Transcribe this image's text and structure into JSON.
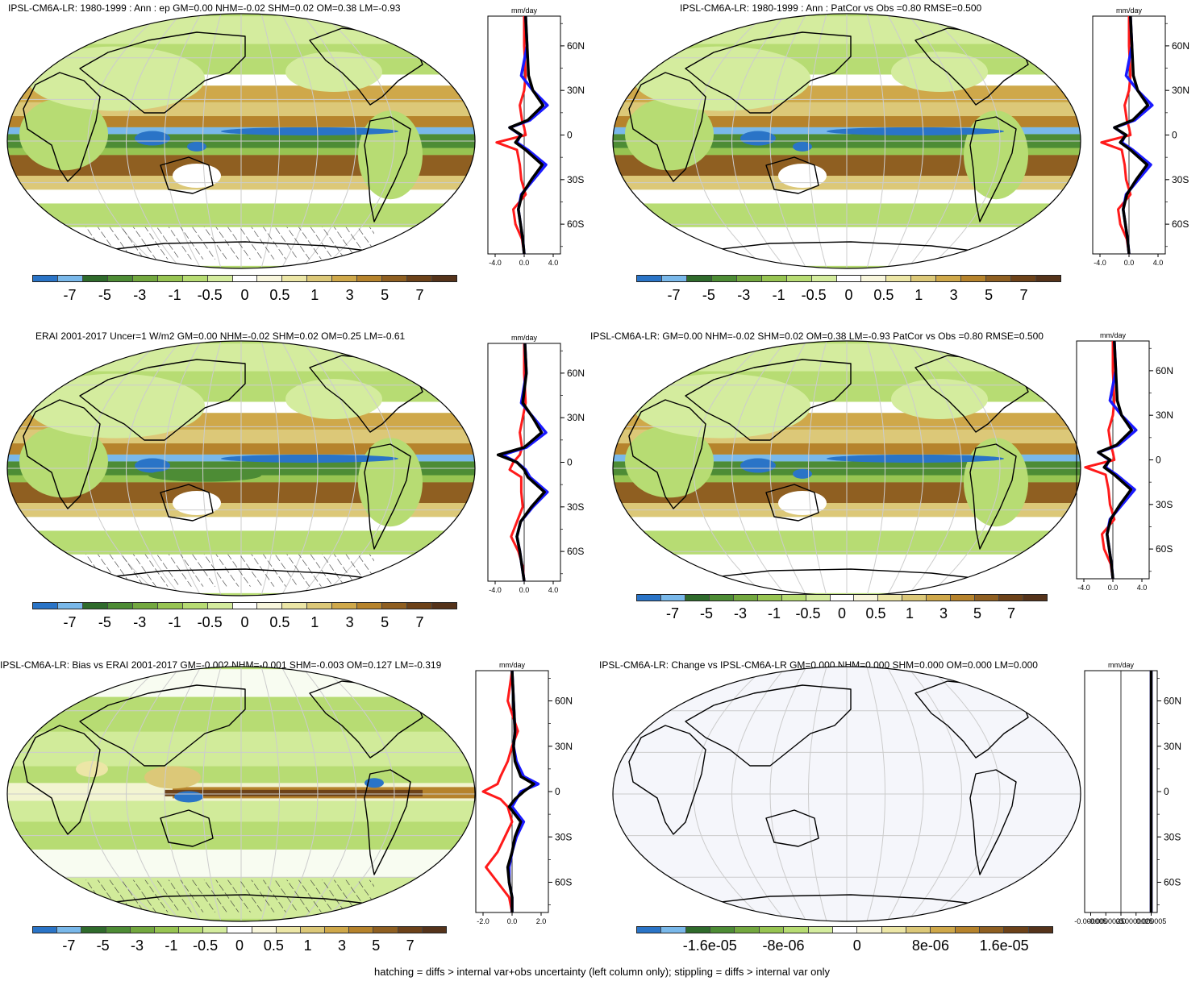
{
  "colors": {
    "palette": [
      "#2a74c7",
      "#79b8ea",
      "#2f6b2c",
      "#4d8c35",
      "#73a83f",
      "#97c452",
      "#b7dc73",
      "#d4ec9e",
      "#ffffff",
      "#f8f6dc",
      "#ece6a6",
      "#dcc878",
      "#cfa84a",
      "#b6832c",
      "#8f5f21",
      "#6d4219",
      "#55331a"
    ],
    "model_line": "#000000",
    "obs_line": "#1a1aff",
    "diff_line": "#ff1a1a"
  },
  "colorbar_labels": [
    "-7",
    "-5",
    "-3",
    "-1",
    "-0.5",
    "0",
    "0.5",
    "1",
    "3",
    "5",
    "7"
  ],
  "colorbar_labels_change": [
    "-1.6e-05",
    "-8e-06",
    "0",
    "8e-06",
    "1.6e-05"
  ],
  "units": "mm/day",
  "lat_ticks": [
    "60N",
    "30N",
    "0",
    "30S",
    "60S"
  ],
  "panels": [
    {
      "id": "model",
      "title": "IPSL-CM6A-LR: 1980-1999 : Ann : ep GM=0.00 NHM=-0.02 SHM=0.02 OM=0.38 LM=-0.93",
      "x_ticks": [
        "-4.0",
        "0.0",
        "4.0"
      ]
    },
    {
      "id": "model-patcor",
      "title": "IPSL-CM6A-LR: 1980-1999 : Ann : PatCor vs Obs =0.80 RMSE=0.500",
      "x_ticks": [
        "-4.0",
        "0.0",
        "4.0"
      ]
    },
    {
      "id": "obs",
      "title": "ERAI 2001-2017 Uncer=1 W/m2 GM=0.00 NHM=-0.02 SHM=0.02 OM=0.25 LM=-0.61",
      "x_ticks": [
        "-4.0",
        "0.0",
        "4.0"
      ]
    },
    {
      "id": "model-summary",
      "title": "IPSL-CM6A-LR: GM=0.00 NHM=-0.02 SHM=0.02 OM=0.38 LM=-0.93 PatCor vs Obs =0.80 RMSE=0.500",
      "x_ticks": [
        "-4.0",
        "0.0",
        "4.0"
      ]
    },
    {
      "id": "bias",
      "title": "IPSL-CM6A-LR: Bias vs ERAI 2001-2017 GM=-0.002 NHM=-0.001 SHM=-0.003 OM=0.127 LM=-0.319",
      "x_ticks": [
        "-2.0",
        "0.0",
        "2.0"
      ]
    },
    {
      "id": "change",
      "title": "IPSL-CM6A-LR: Change vs IPSL-CM6A-LR GM=0.000 NHM=0.000 SHM=0.000 OM=0.000 LM=0.000",
      "x_ticks": [
        "-0.000005",
        "-0.0000025",
        "0.0",
        "0.0000025",
        "0.000005"
      ]
    }
  ],
  "footer": "hatching = diffs > internal var+obs uncertainty (left column only); stippling = diffs > internal var only",
  "chart_data": [
    {
      "type": "heatmap",
      "title": "IPSL-CM6A-LR: 1980-1999 : Ann : ep GM=0.00 NHM=-0.02 SHM=0.02 OM=0.38 LM=-0.93",
      "zonal_mean": {
        "lat": [
          80,
          60,
          40,
          30,
          20,
          10,
          5,
          0,
          -5,
          -10,
          -20,
          -30,
          -40,
          -50,
          -60,
          -70,
          -80
        ],
        "model": [
          0.2,
          0.4,
          0.6,
          1.2,
          2.6,
          0.5,
          -2.0,
          -0.4,
          -1.2,
          0.2,
          2.5,
          1.0,
          -0.3,
          -0.8,
          -0.5,
          -0.2,
          0.0
        ],
        "obs": [
          0.2,
          0.4,
          -0.4,
          1.2,
          3.2,
          0.8,
          -2.0,
          -0.5,
          -1.0,
          0.5,
          3.0,
          1.3,
          -0.4,
          -0.8,
          -0.5,
          -0.2,
          0.0
        ],
        "diff": [
          0.0,
          0.0,
          0.2,
          0.0,
          -0.6,
          -0.3,
          0.0,
          0.2,
          -3.8,
          -1.0,
          -0.6,
          -0.4,
          0.2,
          -1.5,
          -1.2,
          -0.3,
          0.0
        ]
      },
      "xlim": [
        -5,
        5
      ],
      "ylim": [
        -80,
        80
      ]
    },
    {
      "type": "heatmap",
      "title": "IPSL-CM6A-LR: 1980-1999 : Ann : PatCor vs Obs =0.80 RMSE=0.500",
      "zonal_mean": {
        "lat": [
          80,
          60,
          40,
          30,
          20,
          10,
          5,
          0,
          -5,
          -10,
          -20,
          -30,
          -40,
          -50,
          -60,
          -70,
          -80
        ],
        "model": [
          0.2,
          0.4,
          0.6,
          1.2,
          2.6,
          0.5,
          -2.0,
          -0.4,
          -1.2,
          0.2,
          2.5,
          1.0,
          -0.3,
          -0.8,
          -0.5,
          -0.2,
          0.0
        ],
        "obs": [
          0.2,
          0.4,
          -0.4,
          1.2,
          3.2,
          0.8,
          -2.0,
          -0.5,
          -1.0,
          0.5,
          3.0,
          1.3,
          -0.4,
          -0.8,
          -0.5,
          -0.2,
          0.0
        ],
        "diff": [
          0.0,
          0.0,
          0.2,
          0.0,
          -0.6,
          -0.3,
          0.0,
          0.2,
          -3.8,
          -1.0,
          -0.6,
          -0.4,
          0.2,
          -1.5,
          -1.2,
          -0.3,
          0.0
        ]
      },
      "xlim": [
        -5,
        5
      ],
      "ylim": [
        -80,
        80
      ]
    },
    {
      "type": "heatmap",
      "title": "ERAI 2001-2017 Uncer=1 W/m2 GM=0.00 NHM=-0.02 SHM=0.02 OM=0.25 LM=-0.61",
      "zonal_mean": {
        "lat": [
          80,
          60,
          40,
          30,
          20,
          10,
          5,
          0,
          -5,
          -10,
          -20,
          -30,
          -40,
          -50,
          -60,
          -70,
          -80
        ],
        "model": [
          0.1,
          0.3,
          -0.2,
          1.2,
          2.4,
          0.0,
          -3.6,
          -1.0,
          0.0,
          0.5,
          2.8,
          1.0,
          -0.5,
          -1.0,
          -0.6,
          -0.3,
          0.0
        ],
        "obs": [
          0.1,
          0.3,
          -0.4,
          1.3,
          3.0,
          0.3,
          -3.0,
          -1.0,
          0.2,
          0.8,
          3.2,
          1.2,
          -0.5,
          -1.0,
          -0.6,
          -0.3,
          0.0
        ],
        "diff": [
          0.0,
          0.0,
          0.2,
          -0.2,
          -0.6,
          -0.3,
          -0.6,
          -1.5,
          -2.0,
          -0.4,
          -0.4,
          -0.2,
          -1.0,
          -1.8,
          -0.8,
          -0.2,
          0.0
        ]
      },
      "xlim": [
        -5,
        5
      ],
      "ylim": [
        -80,
        80
      ]
    },
    {
      "type": "heatmap",
      "title": "IPSL-CM6A-LR: GM=0.00 NHM=-0.02 SHM=0.02 OM=0.38 LM=-0.93 PatCor vs Obs =0.80 RMSE=0.500",
      "zonal_mean": {
        "lat": [
          80,
          60,
          40,
          30,
          20,
          10,
          5,
          0,
          -5,
          -10,
          -20,
          -30,
          -40,
          -50,
          -60,
          -70,
          -80
        ],
        "model": [
          0.2,
          0.4,
          0.6,
          1.2,
          2.6,
          0.5,
          -2.0,
          -0.4,
          -1.2,
          0.2,
          2.5,
          1.0,
          -0.3,
          -0.8,
          -0.5,
          -0.2,
          0.0
        ],
        "obs": [
          0.2,
          0.4,
          -0.4,
          1.2,
          3.2,
          0.8,
          -2.0,
          -0.5,
          -1.0,
          0.5,
          3.0,
          1.3,
          -0.4,
          -0.8,
          -0.5,
          -0.2,
          0.0
        ],
        "diff": [
          0.0,
          0.0,
          0.2,
          0.0,
          -0.6,
          -0.3,
          0.0,
          0.2,
          -3.8,
          -1.0,
          -0.6,
          -0.4,
          0.2,
          -1.5,
          -1.2,
          -0.3,
          0.0
        ]
      },
      "xlim": [
        -5,
        5
      ],
      "ylim": [
        -80,
        80
      ]
    },
    {
      "type": "heatmap",
      "title": "IPSL-CM6A-LR: Bias vs ERAI 2001-2017 GM=-0.002 NHM=-0.001 SHM=-0.003 OM=0.127 LM=-0.319",
      "zonal_mean": {
        "lat": [
          80,
          60,
          40,
          30,
          20,
          10,
          5,
          0,
          -5,
          -10,
          -20,
          -30,
          -40,
          -50,
          -60,
          -70,
          -80
        ],
        "model": [
          0.0,
          0.1,
          0.2,
          0.1,
          0.2,
          0.6,
          1.5,
          0.8,
          0.2,
          -0.2,
          0.6,
          0.2,
          0.0,
          -0.3,
          -0.2,
          0.0,
          0.0
        ],
        "obs": [
          0.0,
          0.1,
          0.2,
          0.1,
          0.3,
          0.8,
          1.8,
          0.6,
          0.3,
          0.0,
          0.8,
          0.3,
          0.0,
          -0.2,
          -0.2,
          0.0,
          0.0
        ],
        "diff": [
          0.0,
          -0.3,
          0.4,
          0.0,
          -0.3,
          -0.8,
          -1.0,
          -2.0,
          -0.8,
          -0.3,
          0.0,
          -0.5,
          -1.0,
          -1.8,
          -1.0,
          -0.2,
          0.0
        ]
      },
      "xlim": [
        -2.5,
        2.5
      ],
      "ylim": [
        -80,
        80
      ]
    },
    {
      "type": "heatmap",
      "title": "IPSL-CM6A-LR: Change vs IPSL-CM6A-LR GM=0.000 NHM=0.000 SHM=0.000 OM=0.000 LM=0.000",
      "zonal_mean": {
        "lat": [
          80,
          -80
        ],
        "model": [
          5e-06,
          5e-06
        ],
        "obs": [
          5e-06,
          5e-06
        ],
        "diff": [
          5e-06,
          5e-06
        ]
      },
      "xlim": [
        -6e-06,
        6e-06
      ],
      "ylim": [
        -80,
        80
      ]
    }
  ]
}
